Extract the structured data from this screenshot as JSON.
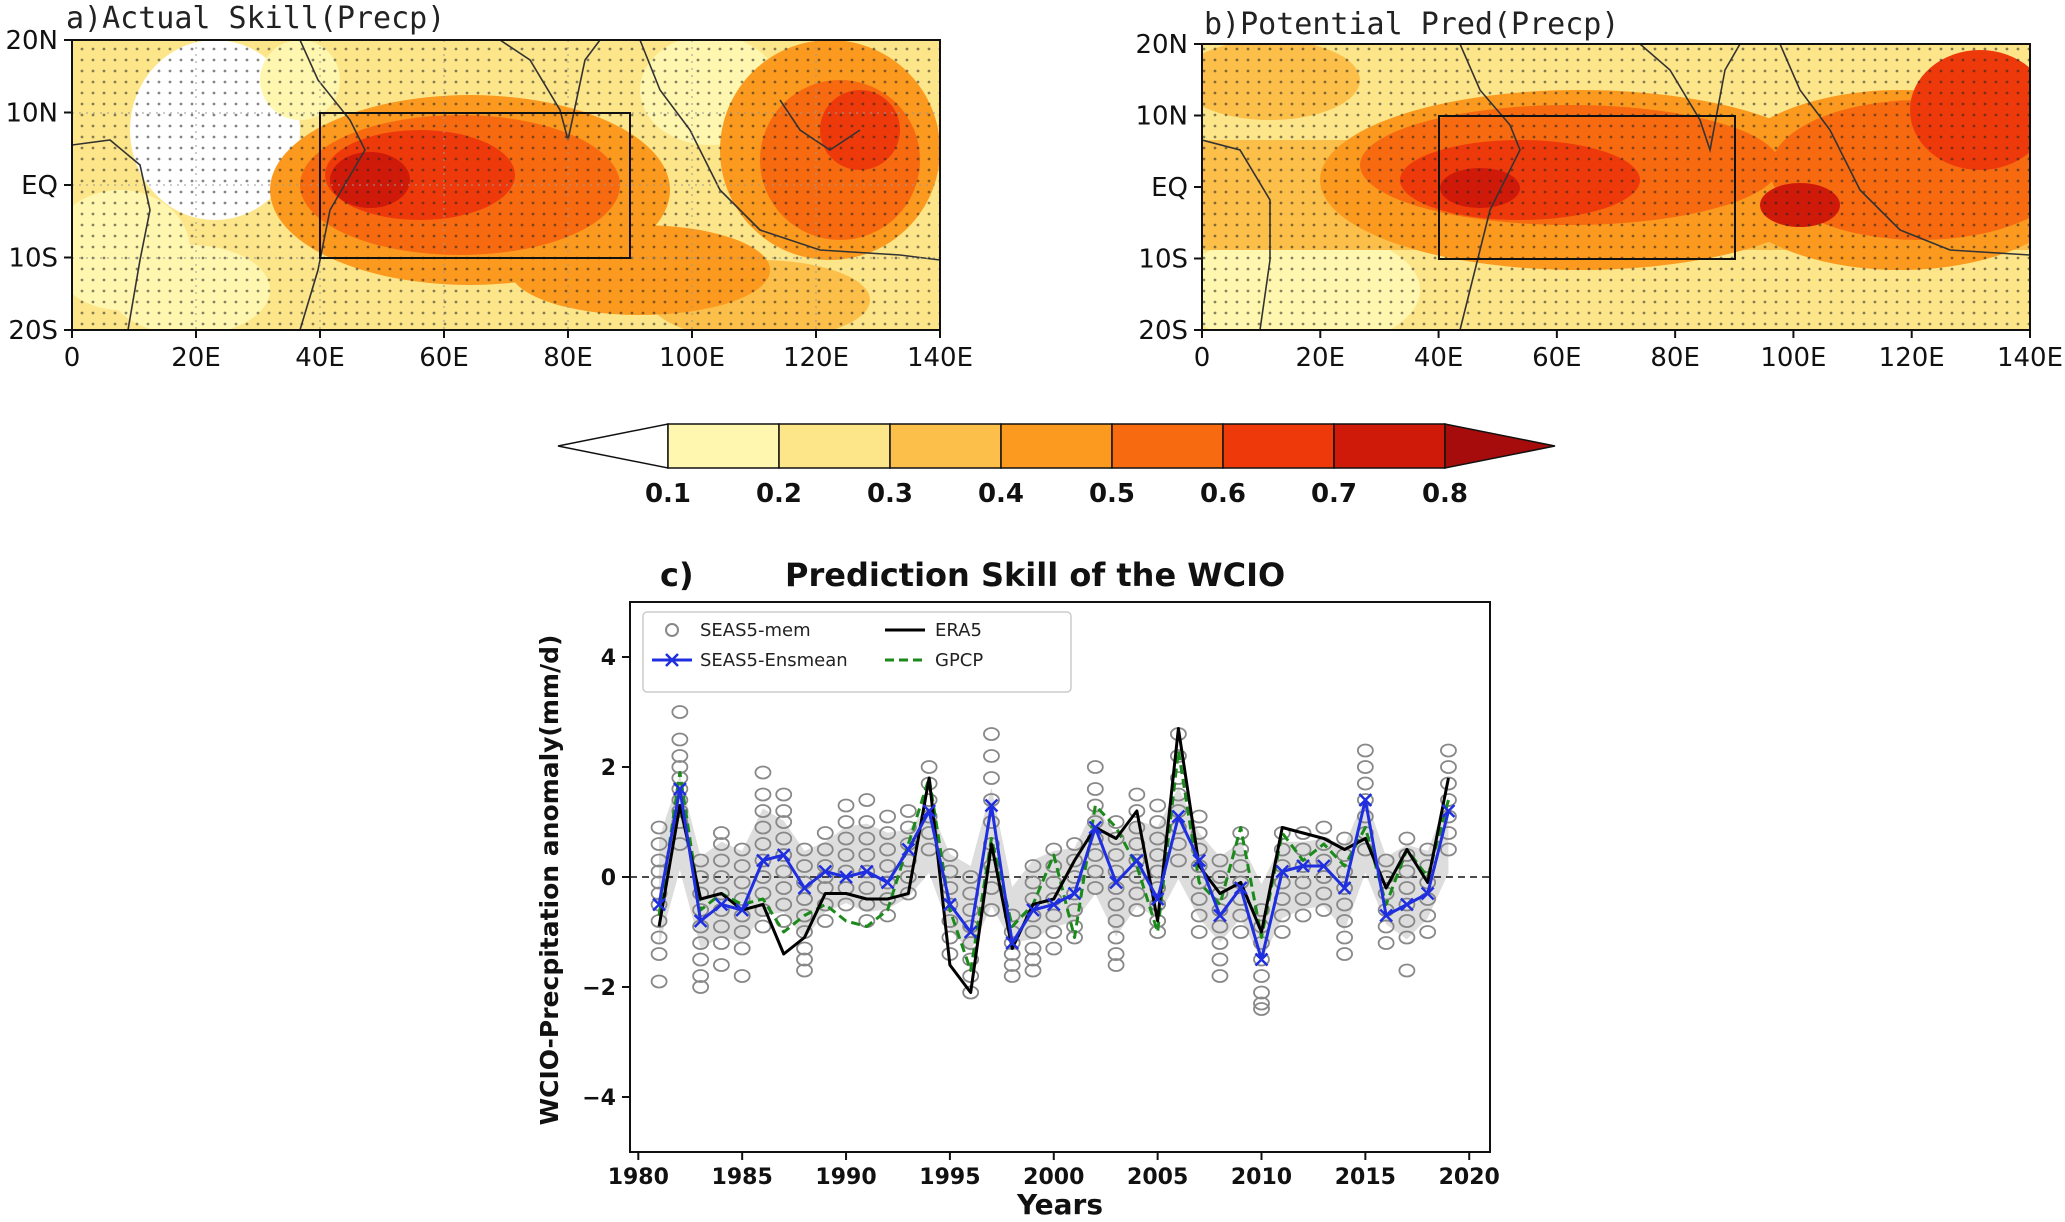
{
  "chart_data": [
    {
      "type": "heatmap",
      "panel_label": "a)Actual Skill(Precp)",
      "x_ticks": [
        "0",
        "20E",
        "40E",
        "60E",
        "80E",
        "100E",
        "120E",
        "140E"
      ],
      "y_ticks": [
        "20N",
        "10N",
        "EQ",
        "10S",
        "20S"
      ],
      "lon_range": [
        0,
        140
      ],
      "lat_range": [
        -20,
        20
      ],
      "box": {
        "lon": [
          40,
          90
        ],
        "lat": [
          -10,
          10
        ]
      }
    },
    {
      "type": "heatmap",
      "panel_label": "b)Potential Pred(Precp)",
      "x_ticks": [
        "0",
        "20E",
        "40E",
        "60E",
        "80E",
        "100E",
        "120E",
        "140E"
      ],
      "y_ticks": [
        "20N",
        "10N",
        "EQ",
        "10S",
        "20S"
      ],
      "lon_range": [
        0,
        140
      ],
      "lat_range": [
        -20,
        20
      ],
      "box": {
        "lon": [
          40,
          90
        ],
        "lat": [
          -10,
          10
        ]
      }
    },
    {
      "type": "colorbar",
      "ticks": [
        "0.1",
        "0.2",
        "0.3",
        "0.4",
        "0.5",
        "0.6",
        "0.7",
        "0.8"
      ],
      "colors": [
        "#ffffff",
        "#fff7b0",
        "#fde68a",
        "#fbbf4a",
        "#fb9a1e",
        "#f76a10",
        "#ee3a0a",
        "#cf1a0a",
        "#a60c0c"
      ]
    },
    {
      "type": "line",
      "panel_label": "c)",
      "title": "Prediction Skill of the WCIO",
      "xlabel": "Years",
      "ylabel": "WCIO-Precpitation anomaly(mm/d)",
      "xlim": [
        1979.6,
        2021
      ],
      "ylim": [
        -5,
        5
      ],
      "x_ticks": [
        "1980",
        "1985",
        "1990",
        "1995",
        "2000",
        "2005",
        "2010",
        "2015",
        "2020"
      ],
      "y_ticks": [
        "4",
        "2",
        "0",
        "−2",
        "−4"
      ],
      "x": [
        1981,
        1982,
        1983,
        1984,
        1985,
        1986,
        1987,
        1988,
        1989,
        1990,
        1991,
        1992,
        1993,
        1994,
        1995,
        1996,
        1997,
        1998,
        1999,
        2000,
        2001,
        2002,
        2003,
        2004,
        2005,
        2006,
        2007,
        2008,
        2009,
        2010,
        2011,
        2012,
        2013,
        2014,
        2015,
        2016,
        2017,
        2018,
        2019
      ],
      "legend": [
        "SEAS5-mem",
        "SEAS5-Ensmean",
        "ERA5",
        "GPCP"
      ],
      "series": [
        {
          "name": "SEAS5-Ensmean",
          "values": [
            -0.5,
            1.6,
            -0.8,
            -0.5,
            -0.6,
            0.3,
            0.4,
            -0.2,
            0.1,
            0.0,
            0.1,
            -0.1,
            0.5,
            1.2,
            -0.5,
            -1.0,
            1.3,
            -1.2,
            -0.6,
            -0.5,
            -0.3,
            0.9,
            -0.1,
            0.3,
            -0.4,
            1.1,
            0.3,
            -0.7,
            -0.2,
            -1.5,
            0.1,
            0.2,
            0.2,
            -0.2,
            1.4,
            -0.7,
            -0.5,
            -0.3,
            1.2
          ]
        },
        {
          "name": "ERA5",
          "values": [
            -0.9,
            1.3,
            -0.4,
            -0.3,
            -0.6,
            -0.5,
            -1.4,
            -1.1,
            -0.3,
            -0.3,
            -0.4,
            -0.4,
            -0.3,
            1.8,
            -1.6,
            -2.1,
            0.6,
            -1.3,
            -0.5,
            -0.4,
            0.3,
            0.9,
            0.7,
            1.2,
            -0.8,
            2.7,
            0.2,
            -0.3,
            -0.1,
            -1.0,
            0.9,
            0.8,
            0.7,
            0.5,
            0.7,
            -0.2,
            0.5,
            -0.1,
            1.8
          ]
        },
        {
          "name": "GPCP",
          "values": [
            -0.7,
            1.9,
            -0.6,
            -0.3,
            -0.5,
            -0.4,
            -1.0,
            -0.7,
            -0.5,
            -0.8,
            -0.9,
            -0.6,
            0.6,
            1.8,
            -0.6,
            -1.7,
            0.7,
            -0.9,
            -0.5,
            0.4,
            -1.1,
            1.3,
            0.9,
            0.2,
            -1.0,
            2.3,
            -0.1,
            -0.5,
            0.9,
            -1.1,
            0.8,
            0.3,
            0.6,
            0.2,
            0.9,
            -0.5,
            0.5,
            0.0,
            1.4
          ]
        }
      ],
      "members": [
        [
          0.9,
          0.6,
          0.3,
          0.1,
          -0.1,
          -0.3,
          -0.5,
          -0.8,
          -1.1,
          -1.4,
          -1.9
        ],
        [
          3.0,
          2.5,
          2.2,
          2.0,
          1.8,
          1.6,
          1.4,
          1.2,
          1.0,
          0.6
        ],
        [
          0.3,
          0.0,
          -0.3,
          -0.6,
          -0.9,
          -1.2,
          -1.5,
          -1.8,
          -2.0
        ],
        [
          0.8,
          0.6,
          0.3,
          0.0,
          -0.3,
          -0.6,
          -0.9,
          -1.2,
          -1.6
        ],
        [
          0.5,
          0.2,
          -0.1,
          -0.4,
          -0.7,
          -1.0,
          -1.3,
          -1.8
        ],
        [
          1.9,
          1.5,
          1.2,
          0.9,
          0.6,
          0.3,
          0.0,
          -0.3,
          -0.6,
          -0.9
        ],
        [
          1.5,
          1.2,
          1.0,
          0.7,
          0.4,
          0.1,
          -0.2,
          -0.5,
          -0.8
        ],
        [
          0.5,
          0.2,
          -0.1,
          -0.4,
          -0.7,
          -1.0,
          -1.3,
          -1.5,
          -1.7
        ],
        [
          0.8,
          0.5,
          0.2,
          0.0,
          -0.2,
          -0.5,
          -0.8
        ],
        [
          1.3,
          1.0,
          0.7,
          0.4,
          0.1,
          -0.2,
          -0.5
        ],
        [
          1.4,
          1.0,
          0.7,
          0.4,
          0.1,
          -0.2,
          -0.5,
          -0.8
        ],
        [
          1.1,
          0.8,
          0.5,
          0.2,
          -0.1,
          -0.4,
          -0.7
        ],
        [
          1.2,
          0.9,
          0.6,
          0.3,
          0.0,
          -0.3
        ],
        [
          2.0,
          1.7,
          1.4,
          1.1,
          0.8,
          0.5
        ],
        [
          0.4,
          0.1,
          -0.2,
          -0.5,
          -0.8,
          -1.1,
          -1.4
        ],
        [
          0.0,
          -0.3,
          -0.6,
          -0.9,
          -1.2,
          -1.5,
          -1.8,
          -2.1
        ],
        [
          2.6,
          2.2,
          1.8,
          1.4,
          1.0,
          0.6,
          0.2,
          -0.2,
          -0.6
        ],
        [
          -0.7,
          -1.0,
          -1.2,
          -1.4,
          -1.6,
          -1.8
        ],
        [
          0.2,
          -0.1,
          -0.4,
          -0.7,
          -1.0,
          -1.3,
          -1.5,
          -1.7
        ],
        [
          0.5,
          0.2,
          -0.1,
          -0.4,
          -0.7,
          -1.0,
          -1.3
        ],
        [
          0.6,
          0.3,
          0.0,
          -0.3,
          -0.6,
          -0.9,
          -1.1
        ],
        [
          2.0,
          1.6,
          1.3,
          1.0,
          0.7,
          0.4,
          0.1,
          -0.2
        ],
        [
          1.0,
          0.7,
          0.4,
          0.1,
          -0.2,
          -0.5,
          -0.8,
          -1.1,
          -1.4,
          -1.6
        ],
        [
          1.5,
          1.2,
          0.9,
          0.6,
          0.3,
          0.0,
          -0.3,
          -0.6
        ],
        [
          1.3,
          1.0,
          0.7,
          0.4,
          0.1,
          -0.2,
          -0.5,
          -0.8,
          -1.0
        ],
        [
          2.6,
          2.2,
          1.8,
          1.5,
          1.2,
          0.9,
          0.6,
          0.3
        ],
        [
          1.1,
          0.8,
          0.5,
          0.2,
          -0.1,
          -0.4,
          -0.7,
          -1.0
        ],
        [
          0.3,
          0.0,
          -0.3,
          -0.6,
          -0.9,
          -1.2,
          -1.5,
          -1.8
        ],
        [
          0.8,
          0.5,
          0.2,
          -0.1,
          -0.4,
          -0.7,
          -1.0
        ],
        [
          -0.6,
          -0.9,
          -1.2,
          -1.5,
          -1.8,
          -2.1,
          -2.3,
          -2.4
        ],
        [
          0.8,
          0.5,
          0.2,
          -0.1,
          -0.4,
          -0.7,
          -1.0
        ],
        [
          0.8,
          0.5,
          0.2,
          -0.1,
          -0.4,
          -0.7
        ],
        [
          0.9,
          0.6,
          0.3,
          0.0,
          -0.3,
          -0.6
        ],
        [
          0.7,
          0.4,
          0.1,
          -0.2,
          -0.5,
          -0.8,
          -1.1,
          -1.4
        ],
        [
          2.3,
          2.0,
          1.7,
          1.4,
          1.1,
          0.8,
          0.5
        ],
        [
          0.3,
          0.0,
          -0.3,
          -0.6,
          -0.9,
          -1.2
        ],
        [
          0.7,
          0.4,
          0.1,
          -0.2,
          -0.5,
          -0.8,
          -1.1,
          -1.7
        ],
        [
          0.5,
          0.2,
          -0.1,
          -0.4,
          -0.7,
          -1.0
        ],
        [
          2.3,
          2.0,
          1.7,
          1.4,
          1.1,
          0.8,
          0.5
        ]
      ]
    }
  ]
}
